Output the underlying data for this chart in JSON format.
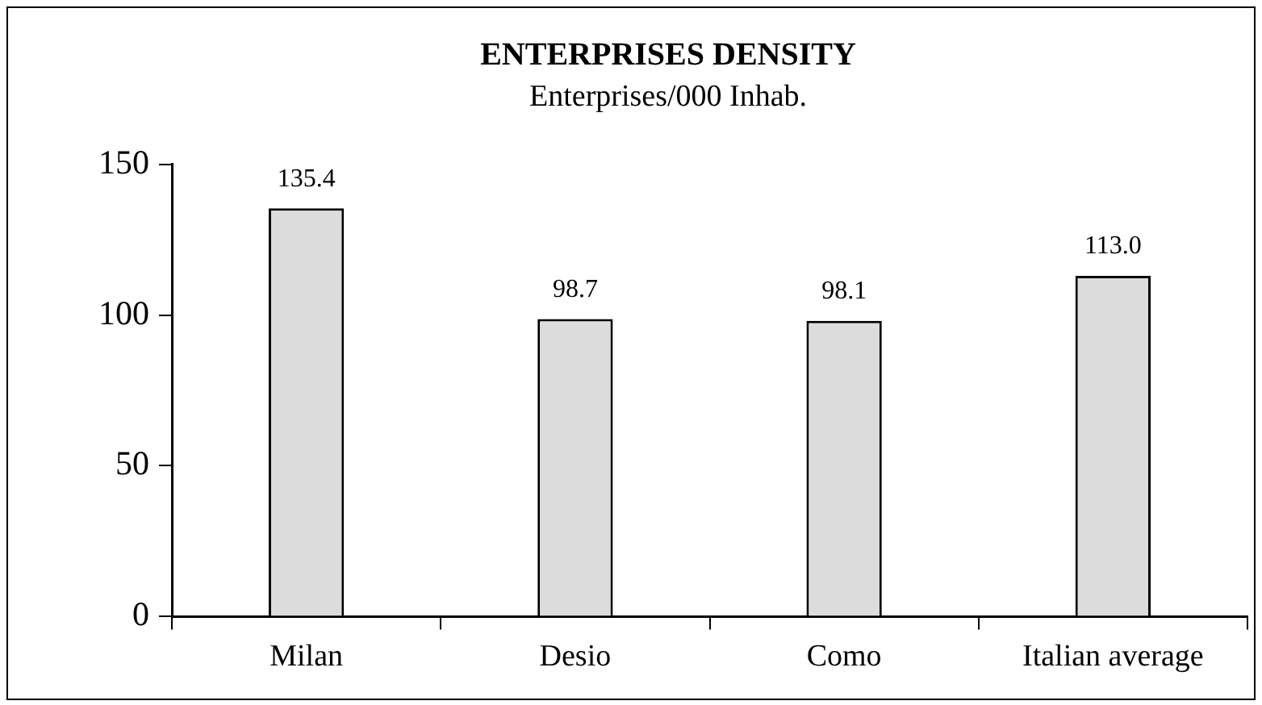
{
  "chart_data": {
    "type": "bar",
    "title": "ENTERPRISES DENSITY",
    "subtitle": "Enterprises/000 Inhab.",
    "categories": [
      "Milan",
      "Desio",
      "Como",
      "Italian average"
    ],
    "values": [
      135.4,
      98.7,
      98.1,
      113.0
    ],
    "value_labels": [
      "135.4",
      "98.7",
      "98.1",
      "113.0"
    ],
    "color": "#dcdcdc",
    "ylim": [
      0,
      150
    ],
    "yticks": [
      0,
      50,
      100,
      150
    ],
    "grid": false,
    "legend": false
  }
}
